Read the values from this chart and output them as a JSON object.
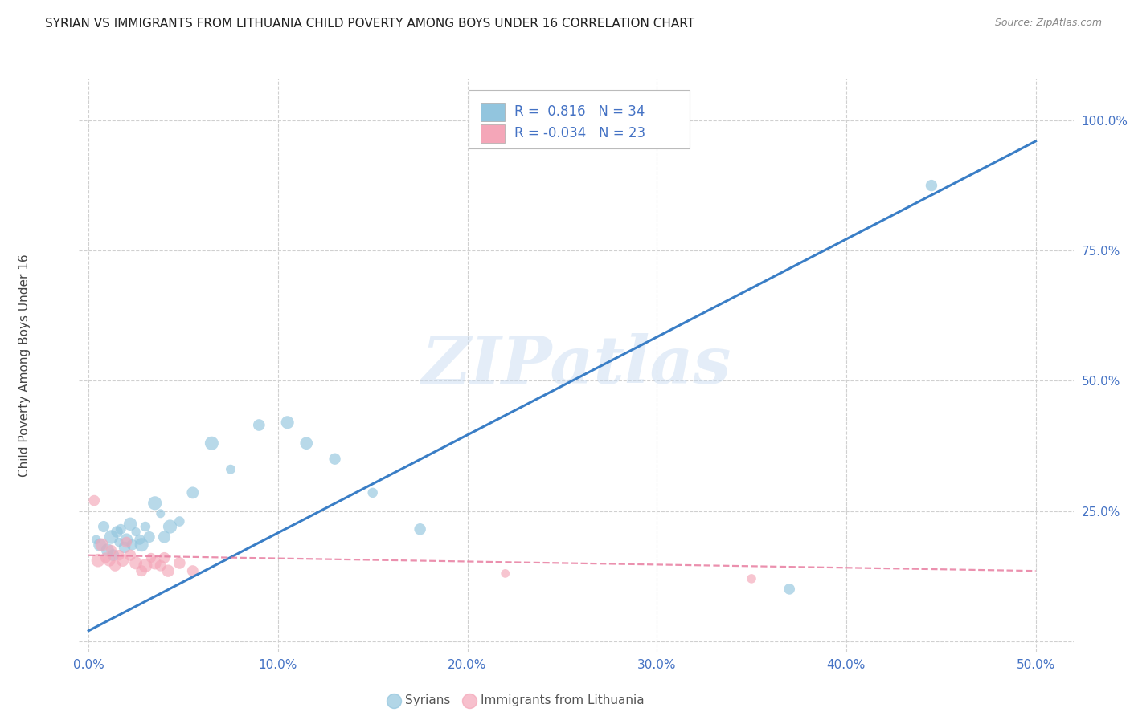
{
  "title": "SYRIAN VS IMMIGRANTS FROM LITHUANIA CHILD POVERTY AMONG BOYS UNDER 16 CORRELATION CHART",
  "source": "Source: ZipAtlas.com",
  "ylabel": "Child Poverty Among Boys Under 16",
  "xlim": [
    -0.005,
    0.52
  ],
  "ylim": [
    -0.02,
    1.08
  ],
  "xticks": [
    0.0,
    0.1,
    0.2,
    0.3,
    0.4,
    0.5
  ],
  "yticks": [
    0.0,
    0.25,
    0.5,
    0.75,
    1.0
  ],
  "xticklabels": [
    "0.0%",
    "10.0%",
    "20.0%",
    "30.0%",
    "40.0%",
    "50.0%"
  ],
  "yticklabels": [
    "",
    "25.0%",
    "50.0%",
    "75.0%",
    "100.0%"
  ],
  "background_color": "#ffffff",
  "watermark": "ZIPatlas",
  "blue_R": "0.816",
  "blue_N": "34",
  "pink_R": "-0.034",
  "pink_N": "23",
  "blue_color": "#92c5de",
  "pink_color": "#f4a6b8",
  "blue_line_color": "#3a7ec6",
  "pink_line_color": "#e87da0",
  "grid_color": "#d0d0d0",
  "title_color": "#222222",
  "axis_label_color": "#444444",
  "tick_color": "#4472c4",
  "legend_text_color": "#4472c4",
  "syrians_x": [
    0.004,
    0.006,
    0.008,
    0.01,
    0.012,
    0.013,
    0.015,
    0.016,
    0.017,
    0.019,
    0.02,
    0.022,
    0.023,
    0.025,
    0.027,
    0.028,
    0.03,
    0.032,
    0.035,
    0.038,
    0.04,
    0.043,
    0.048,
    0.055,
    0.065,
    0.075,
    0.09,
    0.105,
    0.115,
    0.13,
    0.15,
    0.175,
    0.37,
    0.445
  ],
  "syrians_y": [
    0.195,
    0.185,
    0.22,
    0.175,
    0.2,
    0.165,
    0.21,
    0.19,
    0.215,
    0.18,
    0.195,
    0.225,
    0.185,
    0.21,
    0.195,
    0.185,
    0.22,
    0.2,
    0.265,
    0.245,
    0.2,
    0.22,
    0.23,
    0.285,
    0.38,
    0.33,
    0.415,
    0.42,
    0.38,
    0.35,
    0.285,
    0.215,
    0.1,
    0.875
  ],
  "lithuania_x": [
    0.003,
    0.005,
    0.007,
    0.009,
    0.011,
    0.012,
    0.014,
    0.016,
    0.018,
    0.02,
    0.022,
    0.025,
    0.028,
    0.03,
    0.033,
    0.035,
    0.038,
    0.04,
    0.042,
    0.048,
    0.055,
    0.22,
    0.35
  ],
  "lithuania_y": [
    0.27,
    0.155,
    0.185,
    0.16,
    0.155,
    0.175,
    0.145,
    0.165,
    0.155,
    0.19,
    0.165,
    0.15,
    0.135,
    0.145,
    0.16,
    0.15,
    0.145,
    0.16,
    0.135,
    0.15,
    0.135,
    0.13,
    0.12
  ],
  "blue_line_x": [
    0.0,
    0.5
  ],
  "blue_line_y": [
    0.02,
    0.96
  ],
  "pink_line_x": [
    0.0,
    0.5
  ],
  "pink_line_y": [
    0.165,
    0.135
  ]
}
